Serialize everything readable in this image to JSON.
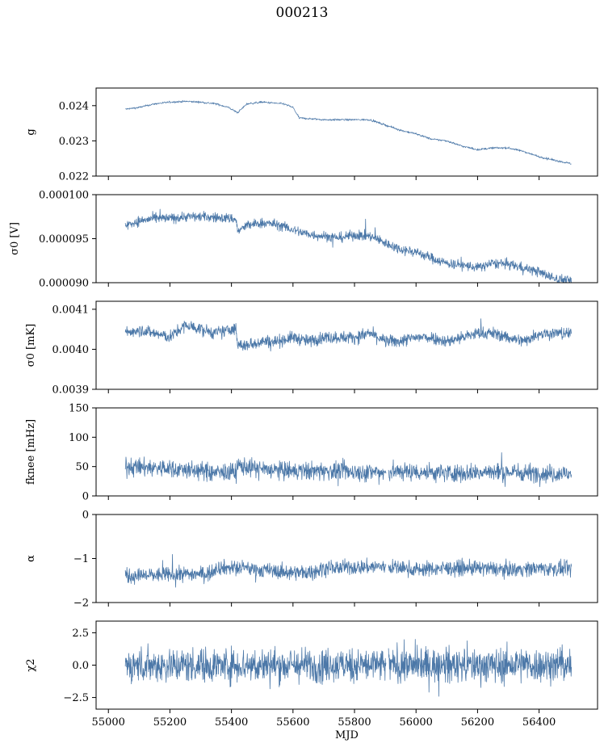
{
  "figure": {
    "title": "000213",
    "xlabel": "MJD"
  },
  "colors": {
    "series": "#4c78a8",
    "axis": "#000000"
  },
  "chart_data": [
    {
      "type": "line",
      "ylabel": "g",
      "xlim": [
        54960,
        56590
      ],
      "ylim": [
        0.022,
        0.0245
      ],
      "yticks": [
        {
          "v": 0.022,
          "label": "0.022"
        },
        {
          "v": 0.023,
          "label": "0.023"
        },
        {
          "v": 0.024,
          "label": "0.024"
        }
      ],
      "noise": 2e-05,
      "x": [
        55055,
        55100,
        55150,
        55200,
        55250,
        55300,
        55350,
        55390,
        55420,
        55450,
        55500,
        55570,
        55600,
        55620,
        55700,
        55800,
        55850,
        55900,
        55950,
        56000,
        56050,
        56100,
        56150,
        56200,
        56250,
        56300,
        56350,
        56400,
        56450,
        56505
      ],
      "y": [
        0.0239,
        0.02395,
        0.02405,
        0.0241,
        0.02412,
        0.0241,
        0.02405,
        0.02395,
        0.0238,
        0.02405,
        0.0241,
        0.02405,
        0.02395,
        0.02365,
        0.0236,
        0.0236,
        0.0236,
        0.02345,
        0.0233,
        0.0232,
        0.02305,
        0.023,
        0.02285,
        0.02275,
        0.0228,
        0.0228,
        0.0227,
        0.02255,
        0.02245,
        0.02235
      ]
    },
    {
      "type": "line",
      "ylabel": "σ0 [V]",
      "xlim": [
        54960,
        56590
      ],
      "ylim": [
        9e-05,
        0.0001
      ],
      "yticks": [
        {
          "v": 9e-05,
          "label": "0.000090"
        },
        {
          "v": 9.5e-05,
          "label": "0.000095"
        },
        {
          "v": 0.0001,
          "label": "0.000100"
        }
      ],
      "noise": 4e-07,
      "x": [
        55055,
        55100,
        55150,
        55200,
        55250,
        55300,
        55350,
        55400,
        55415,
        55420,
        55450,
        55500,
        55550,
        55600,
        55650,
        55700,
        55750,
        55800,
        55850,
        55900,
        55950,
        56000,
        56050,
        56100,
        56150,
        56200,
        56250,
        56300,
        56350,
        56400,
        56450,
        56505
      ],
      "y": [
        9.65e-05,
        9.7e-05,
        9.73e-05,
        9.73e-05,
        9.75e-05,
        9.75e-05,
        9.74e-05,
        9.73e-05,
        9.72e-05,
        9.58e-05,
        9.65e-05,
        9.68e-05,
        9.66e-05,
        9.6e-05,
        9.55e-05,
        9.53e-05,
        9.51e-05,
        9.54e-05,
        9.53e-05,
        9.45e-05,
        9.38e-05,
        9.35e-05,
        9.28e-05,
        9.22e-05,
        9.2e-05,
        9.17e-05,
        9.22e-05,
        9.21e-05,
        9.17e-05,
        9.12e-05,
        9.05e-05,
        9.02e-05
      ]
    },
    {
      "type": "line",
      "ylabel": "σ0 [mK]",
      "xlim": [
        54960,
        56590
      ],
      "ylim": [
        0.0039,
        0.00412
      ],
      "yticks": [
        {
          "v": 0.0039,
          "label": "0.0039"
        },
        {
          "v": 0.004,
          "label": "0.0040"
        },
        {
          "v": 0.0041,
          "label": "0.0041"
        }
      ],
      "noise": 1.1e-05,
      "x": [
        55055,
        55100,
        55150,
        55200,
        55250,
        55300,
        55350,
        55400,
        55415,
        55420,
        55450,
        55500,
        55550,
        55600,
        55650,
        55700,
        55750,
        55800,
        55850,
        55900,
        55950,
        56000,
        56050,
        56100,
        56150,
        56200,
        56250,
        56300,
        56350,
        56400,
        56450,
        56505
      ],
      "y": [
        0.00404,
        0.00405,
        0.00404,
        0.00403,
        0.00406,
        0.00405,
        0.00404,
        0.00405,
        0.00405,
        0.00401,
        0.00401,
        0.00402,
        0.00402,
        0.00403,
        0.00402,
        0.00403,
        0.00403,
        0.00403,
        0.00404,
        0.00402,
        0.00402,
        0.00403,
        0.00403,
        0.00402,
        0.00403,
        0.00404,
        0.00404,
        0.00403,
        0.00402,
        0.00404,
        0.00404,
        0.00404
      ]
    },
    {
      "type": "line",
      "ylabel": "fknee [mHz]",
      "xlim": [
        54960,
        56590
      ],
      "ylim": [
        0,
        150
      ],
      "yticks": [
        {
          "v": 0,
          "label": "0"
        },
        {
          "v": 50,
          "label": "50"
        },
        {
          "v": 100,
          "label": "100"
        },
        {
          "v": 150,
          "label": "150"
        }
      ],
      "noise": 11,
      "x": [
        55055,
        55150,
        55250,
        55350,
        55415,
        55420,
        55500,
        55600,
        55700,
        55800,
        55900,
        55950,
        56050,
        56150,
        56250,
        56350,
        56450,
        56505
      ],
      "y": [
        50,
        48,
        45,
        40,
        40,
        52,
        45,
        42,
        43,
        41,
        40,
        42,
        40,
        39,
        41,
        40,
        38,
        38
      ]
    },
    {
      "type": "line",
      "ylabel": "α",
      "xlim": [
        54960,
        56590
      ],
      "ylim": [
        -2,
        0
      ],
      "yticks": [
        {
          "v": -2,
          "label": "−2"
        },
        {
          "v": -1,
          "label": "−1"
        },
        {
          "v": 0,
          "label": "0"
        }
      ],
      "noise": 0.12,
      "x": [
        55055,
        55150,
        55250,
        55330,
        55350,
        55450,
        55550,
        55650,
        55700,
        55800,
        55900,
        56000,
        56100,
        56200,
        56300,
        56400,
        56505
      ],
      "y": [
        -1.4,
        -1.38,
        -1.35,
        -1.35,
        -1.2,
        -1.22,
        -1.3,
        -1.32,
        -1.22,
        -1.2,
        -1.18,
        -1.25,
        -1.22,
        -1.22,
        -1.25,
        -1.22,
        -1.25
      ]
    },
    {
      "type": "line",
      "ylabel": "χ2",
      "xlim": [
        54960,
        56590
      ],
      "ylim": [
        -3.4,
        3.4
      ],
      "yticks": [
        {
          "v": -2.5,
          "label": "−2.5"
        },
        {
          "v": 0,
          "label": "0.0"
        },
        {
          "v": 2.5,
          "label": "2.5"
        }
      ],
      "noise": 0.95,
      "x": [
        55055,
        56505
      ],
      "y": [
        0.0,
        0.0
      ]
    }
  ],
  "xticks": [
    {
      "v": 55000,
      "label": "55000"
    },
    {
      "v": 55200,
      "label": "55200"
    },
    {
      "v": 55400,
      "label": "55400"
    },
    {
      "v": 55600,
      "label": "55600"
    },
    {
      "v": 55800,
      "label": "55800"
    },
    {
      "v": 56000,
      "label": "56000"
    },
    {
      "v": 56200,
      "label": "56200"
    },
    {
      "v": 56400,
      "label": "56400"
    }
  ]
}
